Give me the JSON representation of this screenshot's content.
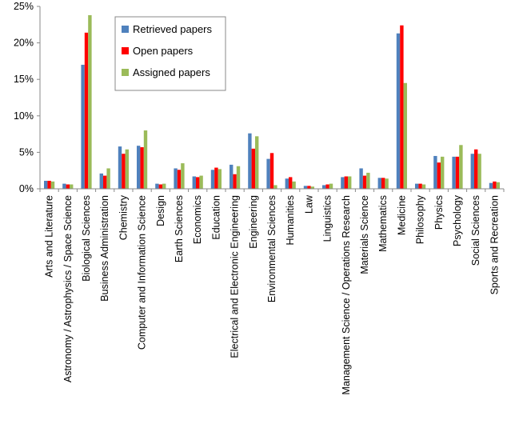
{
  "chart_data": {
    "type": "bar",
    "categories": [
      "Arts and Literature",
      "Astronomy / Astrophysics / Space Science",
      "Biological Sciences",
      "Business Administration",
      "Chemistry",
      "Computer and Information Science",
      "Design",
      "Earth Sciences",
      "Economics",
      "Education",
      "Electrical and Electronic Engineering",
      "Engineering",
      "Environmental Sciences",
      "Humanities",
      "Law",
      "Linguistics",
      "Management Science / Operations Research",
      "Materials Science",
      "Mathematics",
      "Medicine",
      "Philosophy",
      "Physics",
      "Psychology",
      "Social Sciences",
      "Sports and Recreation"
    ],
    "series": [
      {
        "name": "Retrieved papers",
        "color": "#4f81bd",
        "values": [
          1.1,
          0.7,
          17.0,
          2.1,
          5.8,
          5.9,
          0.7,
          2.8,
          1.7,
          2.6,
          3.3,
          7.6,
          4.1,
          1.4,
          0.4,
          0.5,
          1.6,
          2.8,
          1.5,
          21.3,
          0.7,
          4.5,
          4.4,
          4.8,
          0.8
        ]
      },
      {
        "name": "Open papers",
        "color": "#ff0000",
        "values": [
          1.1,
          0.6,
          21.4,
          1.8,
          4.8,
          5.7,
          0.6,
          2.6,
          1.6,
          2.9,
          2.0,
          5.5,
          4.9,
          1.6,
          0.4,
          0.6,
          1.7,
          1.8,
          1.5,
          22.4,
          0.7,
          3.6,
          4.4,
          5.4,
          1.0
        ]
      },
      {
        "name": "Assigned papers",
        "color": "#9bbb59",
        "values": [
          1.0,
          0.6,
          23.8,
          2.8,
          5.4,
          8.0,
          0.7,
          3.5,
          1.8,
          2.7,
          3.1,
          7.2,
          0.5,
          1.0,
          0.3,
          0.7,
          1.7,
          2.2,
          1.4,
          14.5,
          0.6,
          4.4,
          6.0,
          4.8,
          0.9
        ]
      }
    ],
    "yticks": [
      "0%",
      "5%",
      "10%",
      "15%",
      "20%",
      "25%"
    ],
    "ylim": [
      0,
      25
    ],
    "legend_position": "top-left inside",
    "grid": false
  }
}
